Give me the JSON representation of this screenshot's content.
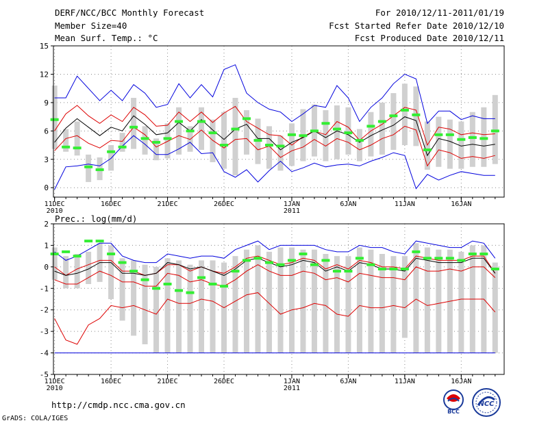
{
  "header": {
    "title": "DERF/NCC/BCC Monthly Forecast",
    "member_size": "Member Size=40",
    "variable": "Mean Surf. Temp.: °C",
    "forecast_period": "For 2010/12/11-2011/01/19",
    "fcst_started": "Fcst Started Refer Date 2010/12/10",
    "fcst_produced": "Fcst Produced Date 2010/12/11"
  },
  "footer": {
    "url": "http://cmdp.ncc.cma.gov.cn",
    "credit": "GrADS: COLA/IGES",
    "logo_bcc": "BCC",
    "logo_ncc": "NCC"
  },
  "colors": {
    "max": "#0000dd",
    "spread": "#dd0000",
    "mean": "#000000",
    "observed": "#33ee33",
    "box": "#d0d0d0"
  },
  "chart_data": [
    {
      "type": "line",
      "title": "Mean Surf. Temp.: °C",
      "ylim": [
        -1,
        15
      ],
      "yticks": [
        0,
        3,
        6,
        9,
        12,
        15
      ],
      "x_ticks": [
        {
          "day": 1,
          "label": "11DEC",
          "sub": "2010"
        },
        {
          "day": 6,
          "label": "16DEC",
          "sub": ""
        },
        {
          "day": 11,
          "label": "21DEC",
          "sub": ""
        },
        {
          "day": 16,
          "label": "26DEC",
          "sub": ""
        },
        {
          "day": 22,
          "label": "1JAN",
          "sub": "2011"
        },
        {
          "day": 27,
          "label": "6JAN",
          "sub": ""
        },
        {
          "day": 32,
          "label": "11JAN",
          "sub": ""
        },
        {
          "day": 37,
          "label": "16JAN",
          "sub": ""
        }
      ],
      "xlim": [
        0.9,
        40.8
      ],
      "days": [
        1,
        2,
        3,
        4,
        5,
        6,
        7,
        8,
        9,
        10,
        11,
        12,
        13,
        14,
        15,
        16,
        17,
        18,
        19,
        20,
        21,
        22,
        23,
        24,
        25,
        26,
        27,
        28,
        29,
        30,
        31,
        32,
        33,
        34,
        35,
        36,
        37,
        38,
        39,
        40
      ],
      "series": [
        {
          "name": "ensemble max",
          "color": "#0000dd",
          "values": [
            -0.2,
            2.2,
            2.3,
            2.5,
            2.3,
            3.1,
            4.4,
            5.5,
            4.6,
            3.5,
            3.5,
            4.1,
            4.8,
            3.6,
            3.7,
            1.7,
            1.1,
            1.9,
            0.6,
            1.8,
            2.8,
            1.7,
            2.1,
            2.6,
            2.2,
            2.4,
            2.5,
            2.3,
            2.8,
            3.2,
            3.7,
            3.4,
            -0.1,
            1.4,
            0.8,
            1.3,
            1.7,
            1.5,
            1.3,
            1.3
          ]
        },
        {
          "name": "ensemble upper",
          "color": "#0000dd",
          "values": [
            9.5,
            9.5,
            11.8,
            10.5,
            9.2,
            10.3,
            9.2,
            10.9,
            10.0,
            8.5,
            8.8,
            11.0,
            9.5,
            10.9,
            9.6,
            12.5,
            13.0,
            10.0,
            9.0,
            8.3,
            8.0,
            7.0,
            7.8,
            8.7,
            8.5,
            10.8,
            9.5,
            7.0,
            8.5,
            9.5,
            11.0,
            12.0,
            11.5,
            6.8,
            8.1,
            8.1,
            7.2,
            7.6,
            7.3,
            7.3
          ]
        },
        {
          "name": "spread upper",
          "color": "#dd0000",
          "values": [
            6.0,
            7.8,
            8.7,
            7.6,
            6.8,
            7.7,
            7.0,
            8.5,
            7.7,
            6.5,
            6.6,
            8.0,
            7.0,
            8.0,
            6.9,
            7.9,
            8.6,
            7.0,
            6.3,
            5.6,
            5.5,
            4.5,
            5.4,
            6.0,
            5.6,
            7.0,
            6.4,
            5.0,
            6.0,
            6.7,
            7.6,
            8.5,
            8.2,
            4.5,
            6.4,
            6.2,
            5.6,
            5.8,
            5.6,
            5.7
          ]
        },
        {
          "name": "ensemble mean",
          "color": "#000000",
          "values": [
            4.8,
            6.3,
            7.3,
            6.4,
            5.5,
            6.4,
            6.0,
            7.6,
            6.7,
            5.6,
            5.8,
            6.9,
            6.0,
            7.2,
            6.1,
            5.1,
            6.2,
            6.7,
            5.2,
            5.2,
            4.0,
            4.8,
            5.3,
            6.0,
            5.3,
            6.0,
            5.6,
            4.8,
            5.5,
            6.1,
            6.6,
            7.5,
            7.1,
            3.4,
            5.2,
            4.9,
            4.4,
            4.6,
            4.4,
            4.6
          ]
        },
        {
          "name": "spread lower",
          "color": "#dd0000",
          "values": [
            3.9,
            5.2,
            5.5,
            4.7,
            4.2,
            5.0,
            4.9,
            6.4,
            5.6,
            4.3,
            4.9,
            5.5,
            5.1,
            6.1,
            5.0,
            4.2,
            5.1,
            5.2,
            4.0,
            4.4,
            3.2,
            3.9,
            4.3,
            5.1,
            4.4,
            5.2,
            4.8,
            4.0,
            4.5,
            5.2,
            5.6,
            6.5,
            6.1,
            2.3,
            4.0,
            3.7,
            3.1,
            3.3,
            3.1,
            3.4
          ]
        },
        {
          "name": "observed",
          "color": "#33ee33",
          "values": [
            7.2,
            4.3,
            4.2,
            2.2,
            1.9,
            3.8,
            4.3,
            6.4,
            5.2,
            4.8,
            5.2,
            7.0,
            6.0,
            7.0,
            5.8,
            4.5,
            6.2,
            7.3,
            5.0,
            4.5,
            4.4,
            5.6,
            5.5,
            6.0,
            6.8,
            6.2,
            5.8,
            5.0,
            6.5,
            7.0,
            7.6,
            8.2,
            7.7,
            4.0,
            5.6,
            5.6,
            5.1,
            5.3,
            5.2,
            6.0
          ]
        },
        {
          "name": "box top",
          "color": "#d0d0d0",
          "values": [
            10.8,
            6.2,
            7.0,
            3.5,
            3.2,
            4.5,
            5.8,
            9.5,
            6.5,
            5.2,
            6.8,
            8.5,
            6.5,
            8.5,
            7.2,
            8.0,
            9.5,
            8.2,
            7.3,
            6.5,
            5.5,
            6.8,
            8.3,
            8.8,
            8.2,
            8.7,
            8.5,
            6.2,
            8.0,
            9.0,
            10.0,
            11.0,
            10.7,
            7.0,
            7.5,
            7.2,
            7.0,
            8.0,
            8.5,
            9.8
          ]
        },
        {
          "name": "box bottom",
          "color": "#d0d0d0",
          "values": [
            4.1,
            3.8,
            3.4,
            0.6,
            0.8,
            1.8,
            3.8,
            4.1,
            3.5,
            2.9,
            3.1,
            3.5,
            3.8,
            4.0,
            2.7,
            2.0,
            1.3,
            3.5,
            2.5,
            2.0,
            1.8,
            2.3,
            2.8,
            3.3,
            2.8,
            3.0,
            3.5,
            2.8,
            3.3,
            3.5,
            4.0,
            4.5,
            4.4,
            1.9,
            2.2,
            2.0,
            2.0,
            2.2,
            2.2,
            2.5
          ]
        }
      ]
    },
    {
      "type": "line",
      "title": "Prec.: log(mm/d)",
      "ylim": [
        -5,
        2
      ],
      "yticks": [
        -5,
        -4,
        -3,
        -2,
        -1,
        0,
        1,
        2
      ],
      "x_ticks": [
        {
          "day": 1,
          "label": "11DEC",
          "sub": "2010"
        },
        {
          "day": 6,
          "label": "16DEC",
          "sub": ""
        },
        {
          "day": 11,
          "label": "21DEC",
          "sub": ""
        },
        {
          "day": 16,
          "label": "26DEC",
          "sub": ""
        },
        {
          "day": 22,
          "label": "1JAN",
          "sub": "2011"
        },
        {
          "day": 27,
          "label": "6JAN",
          "sub": ""
        },
        {
          "day": 32,
          "label": "11JAN",
          "sub": ""
        },
        {
          "day": 37,
          "label": "16JAN",
          "sub": ""
        }
      ],
      "xlim": [
        0.9,
        40.8
      ],
      "days": [
        1,
        2,
        3,
        4,
        5,
        6,
        7,
        8,
        9,
        10,
        11,
        12,
        13,
        14,
        15,
        16,
        17,
        18,
        19,
        20,
        21,
        22,
        23,
        24,
        25,
        26,
        27,
        28,
        29,
        30,
        31,
        32,
        33,
        34,
        35,
        36,
        37,
        38,
        39,
        40
      ],
      "series": [
        {
          "name": "ensemble min",
          "color": "#0000dd",
          "values": [
            -4,
            -4,
            -4,
            -4,
            -4,
            -4,
            -4,
            -4,
            -4,
            -4,
            -4,
            -4,
            -4,
            -4,
            -4,
            -4,
            -4,
            -4,
            -4,
            -4,
            -4,
            -4,
            -4,
            -4,
            -4,
            -4,
            -4,
            -4,
            -4,
            -4,
            -4,
            -4,
            -4,
            -4,
            -4,
            -4,
            -4,
            -4,
            -4,
            -4
          ]
        },
        {
          "name": "ensemble upper",
          "color": "#0000dd",
          "values": [
            0.7,
            0.3,
            0.5,
            0.8,
            1.1,
            1.1,
            0.5,
            0.3,
            0.2,
            0.2,
            0.6,
            0.5,
            0.4,
            0.5,
            0.5,
            0.4,
            0.8,
            1.0,
            1.2,
            0.8,
            1.0,
            1.0,
            1.0,
            1.0,
            0.8,
            0.7,
            0.7,
            1.0,
            0.9,
            0.9,
            0.7,
            0.6,
            1.2,
            1.1,
            1.0,
            0.9,
            0.9,
            1.2,
            1.1,
            0.4
          ]
        },
        {
          "name": "spread upper",
          "color": "#dd0000",
          "values": [
            0.0,
            -0.4,
            -0.1,
            0.1,
            0.3,
            0.3,
            -0.2,
            -0.2,
            -0.4,
            -0.3,
            0.1,
            0.1,
            -0.2,
            0.0,
            -0.2,
            -0.3,
            0.0,
            0.4,
            0.5,
            0.3,
            0.1,
            0.2,
            0.4,
            0.3,
            -0.1,
            0.1,
            -0.1,
            0.3,
            0.2,
            0.0,
            0.0,
            -0.1,
            0.5,
            0.4,
            0.3,
            0.3,
            0.3,
            0.5,
            0.5,
            -0.3
          ]
        },
        {
          "name": "ensemble mean",
          "color": "#000000",
          "values": [
            -0.2,
            -0.4,
            -0.3,
            -0.1,
            0.2,
            0.2,
            -0.3,
            -0.3,
            -0.4,
            -0.3,
            0.2,
            0.1,
            -0.1,
            0.0,
            -0.2,
            -0.4,
            -0.1,
            0.3,
            0.4,
            0.2,
            0.0,
            0.1,
            0.3,
            0.2,
            -0.2,
            0.0,
            -0.2,
            0.2,
            0.1,
            -0.1,
            -0.1,
            -0.2,
            0.4,
            0.3,
            0.2,
            0.2,
            0.2,
            0.4,
            0.4,
            -0.3
          ]
        },
        {
          "name": "spread lower",
          "color": "#dd0000",
          "values": [
            -0.6,
            -0.8,
            -0.8,
            -0.5,
            -0.2,
            -0.4,
            -0.7,
            -0.7,
            -0.9,
            -0.9,
            -0.3,
            -0.4,
            -0.7,
            -0.6,
            -0.8,
            -0.9,
            -0.6,
            -0.2,
            0.1,
            -0.2,
            -0.4,
            -0.4,
            -0.2,
            -0.3,
            -0.6,
            -0.5,
            -0.7,
            -0.3,
            -0.4,
            -0.5,
            -0.5,
            -0.6,
            0.0,
            -0.2,
            -0.2,
            -0.1,
            -0.2,
            0.0,
            0.0,
            -0.5
          ]
        },
        {
          "name": "ensemble lower",
          "color": "#dd0000",
          "values": [
            -2.4,
            -3.4,
            -3.6,
            -2.7,
            -2.4,
            -1.8,
            -1.9,
            -1.8,
            -2.0,
            -2.2,
            -1.5,
            -1.7,
            -1.7,
            -1.5,
            -1.6,
            -1.9,
            -1.6,
            -1.3,
            -1.2,
            -1.7,
            -2.2,
            -2.0,
            -1.9,
            -1.7,
            -1.8,
            -2.2,
            -2.3,
            -1.8,
            -1.9,
            -1.9,
            -1.8,
            -1.9,
            -1.5,
            -1.8,
            -1.7,
            -1.6,
            -1.5,
            -1.5,
            -1.5,
            -2.1
          ]
        },
        {
          "name": "observed",
          "color": "#33ee33",
          "values": [
            0.6,
            0.7,
            0.5,
            1.2,
            1.2,
            0.6,
            0.2,
            -0.2,
            -0.6,
            -1.0,
            -0.8,
            -1.1,
            -1.2,
            -0.5,
            -0.8,
            -0.9,
            -0.2,
            0.3,
            0.4,
            0.2,
            0.1,
            0.3,
            0.6,
            0.1,
            0.3,
            -0.2,
            -0.2,
            0.4,
            0.1,
            -0.1,
            -0.1,
            -0.1,
            0.7,
            0.4,
            0.4,
            0.4,
            0.3,
            0.6,
            0.6,
            -0.1
          ]
        },
        {
          "name": "box top",
          "color": "#d0d0d0",
          "values": [
            0.9,
            0.5,
            0.6,
            0.7,
            1.1,
            1.0,
            0.4,
            0.3,
            0.1,
            0.0,
            0.4,
            0.3,
            0.1,
            0.3,
            0.3,
            0.2,
            0.5,
            0.8,
            1.0,
            0.7,
            0.9,
            0.9,
            0.8,
            0.8,
            0.6,
            0.5,
            0.5,
            0.9,
            0.8,
            0.6,
            0.5,
            0.5,
            1.1,
            0.9,
            0.8,
            0.8,
            0.7,
            1.0,
            1.0,
            0.2
          ]
        },
        {
          "name": "box bottom",
          "color": "#d0d0d0",
          "values": [
            -0.6,
            -1.0,
            -1.0,
            -0.8,
            -0.7,
            -1.5,
            -2.5,
            -3.2,
            -3.6,
            -4.0,
            -4.0,
            -4.0,
            -4.0,
            -4.0,
            -4.0,
            -4.0,
            -4.0,
            -4.0,
            -4.0,
            -4.0,
            -4.0,
            -4.0,
            -4.0,
            -4.0,
            -4.0,
            -4.0,
            -4.0,
            -4.0,
            -4.0,
            -4.0,
            -4.0,
            -3.3,
            -4.0,
            -4.0,
            -4.0,
            -4.0,
            -4.0,
            -4.0,
            -4.0,
            -4.0
          ]
        }
      ]
    }
  ]
}
